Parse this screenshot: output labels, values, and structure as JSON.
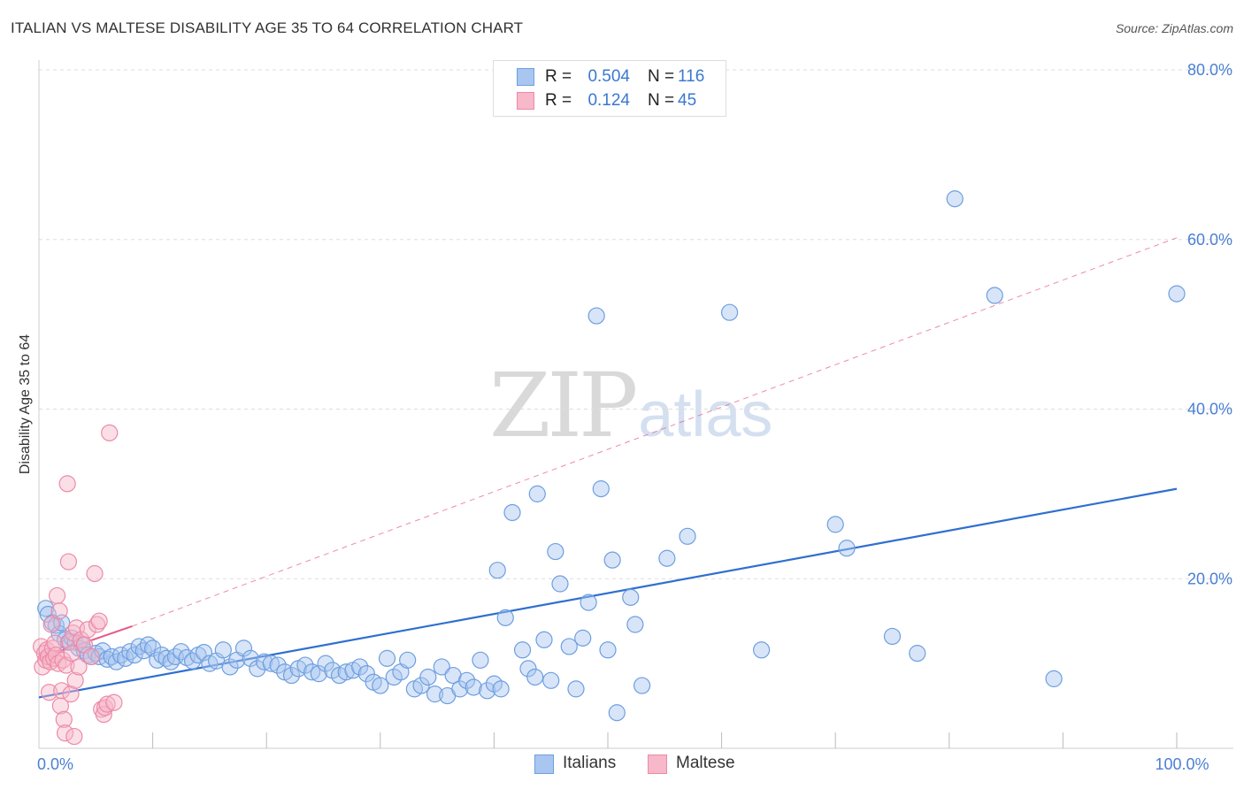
{
  "header": {
    "title": "ITALIAN VS MALTESE DISABILITY AGE 35 TO 64 CORRELATION CHART",
    "source": "Source: ZipAtlas.com"
  },
  "watermark": {
    "zip": "ZIP",
    "atlas": "atlas"
  },
  "legend": {
    "rows": [
      {
        "r_label": "R =",
        "r_value": "0.504",
        "n_label": "N =",
        "n_value": "116"
      },
      {
        "r_label": "R =",
        "r_value": "0.124",
        "n_label": "N =",
        "n_value": "45"
      }
    ]
  },
  "bottom_legend": {
    "italians": "Italians",
    "maltese": "Maltese"
  },
  "colors": {
    "italians_fill": "#a9c6f0",
    "italians_stroke": "#6d9fe0",
    "italians_line": "#2f6fcf",
    "maltese_fill": "#f7b8c9",
    "maltese_stroke": "#ec8aa7",
    "maltese_line": "#e6598a",
    "grid": "#dddddd",
    "tick_label": "#4a7fd4"
  },
  "chart_data": {
    "type": "scatter",
    "title": "ITALIAN VS MALTESE DISABILITY AGE 35 TO 64 CORRELATION CHART",
    "xlabel": "",
    "ylabel": "Disability Age 35 to 64",
    "xlim": [
      0,
      100
    ],
    "ylim": [
      0,
      80
    ],
    "x_tick_labels": [
      {
        "value": 0,
        "label": "0.0%"
      },
      {
        "value": 100,
        "label": "100.0%"
      }
    ],
    "y_tick_labels": [
      {
        "value": 20,
        "label": "20.0%"
      },
      {
        "value": 40,
        "label": "40.0%"
      },
      {
        "value": 60,
        "label": "60.0%"
      },
      {
        "value": 80,
        "label": "80.0%"
      }
    ],
    "grid": true,
    "legend_position": "top-center",
    "series": [
      {
        "name": "Italians",
        "r": 0.504,
        "n": 116,
        "trend": {
          "x": [
            0,
            100
          ],
          "y": [
            6.0,
            30.6
          ],
          "style": "solid"
        },
        "points": [
          [
            0.6,
            16.5
          ],
          [
            0.8,
            15.8
          ],
          [
            1.2,
            14.8
          ],
          [
            1.5,
            14.5
          ],
          [
            1.8,
            13.5
          ],
          [
            2.0,
            14.8
          ],
          [
            2.3,
            12.8
          ],
          [
            2.6,
            12.5
          ],
          [
            2.9,
            13.0
          ],
          [
            3.2,
            12.5
          ],
          [
            3.5,
            11.8
          ],
          [
            3.8,
            12.2
          ],
          [
            4.0,
            11.5
          ],
          [
            4.3,
            11.0
          ],
          [
            4.6,
            10.8
          ],
          [
            5.0,
            11.2
          ],
          [
            5.3,
            10.8
          ],
          [
            5.6,
            11.5
          ],
          [
            6.0,
            10.5
          ],
          [
            6.4,
            10.8
          ],
          [
            6.8,
            10.2
          ],
          [
            7.2,
            11.0
          ],
          [
            7.6,
            10.6
          ],
          [
            8.0,
            11.4
          ],
          [
            8.4,
            11.0
          ],
          [
            8.8,
            12.0
          ],
          [
            9.2,
            11.5
          ],
          [
            9.6,
            12.2
          ],
          [
            10.0,
            11.8
          ],
          [
            10.4,
            10.4
          ],
          [
            10.8,
            11.0
          ],
          [
            11.2,
            10.6
          ],
          [
            11.6,
            10.2
          ],
          [
            12.0,
            10.8
          ],
          [
            12.5,
            11.4
          ],
          [
            13.0,
            10.7
          ],
          [
            13.5,
            10.3
          ],
          [
            14.0,
            11.0
          ],
          [
            14.5,
            11.3
          ],
          [
            15.0,
            10.0
          ],
          [
            15.6,
            10.3
          ],
          [
            16.2,
            11.6
          ],
          [
            16.8,
            9.6
          ],
          [
            17.4,
            10.4
          ],
          [
            18.0,
            11.8
          ],
          [
            18.6,
            10.6
          ],
          [
            19.2,
            9.4
          ],
          [
            19.8,
            10.2
          ],
          [
            20.4,
            10.0
          ],
          [
            21.0,
            9.8
          ],
          [
            21.6,
            9.0
          ],
          [
            22.2,
            8.6
          ],
          [
            22.8,
            9.4
          ],
          [
            23.4,
            9.8
          ],
          [
            24.0,
            9.0
          ],
          [
            24.6,
            8.8
          ],
          [
            25.2,
            10.0
          ],
          [
            25.8,
            9.2
          ],
          [
            26.4,
            8.6
          ],
          [
            27.0,
            9.0
          ],
          [
            27.6,
            9.2
          ],
          [
            28.2,
            9.6
          ],
          [
            28.8,
            8.8
          ],
          [
            29.4,
            7.8
          ],
          [
            30.0,
            7.4
          ],
          [
            30.6,
            10.6
          ],
          [
            31.2,
            8.4
          ],
          [
            31.8,
            9.0
          ],
          [
            32.4,
            10.4
          ],
          [
            33.0,
            7.0
          ],
          [
            33.6,
            7.4
          ],
          [
            34.2,
            8.4
          ],
          [
            34.8,
            6.4
          ],
          [
            35.4,
            9.6
          ],
          [
            35.9,
            6.2
          ],
          [
            36.4,
            8.6
          ],
          [
            37.0,
            7.0
          ],
          [
            37.6,
            8.0
          ],
          [
            38.2,
            7.2
          ],
          [
            38.8,
            10.4
          ],
          [
            39.4,
            6.8
          ],
          [
            40.0,
            7.6
          ],
          [
            40.6,
            7.0
          ],
          [
            40.3,
            21.0
          ],
          [
            41.0,
            15.4
          ],
          [
            41.6,
            27.8
          ],
          [
            42.5,
            11.6
          ],
          [
            43.0,
            9.4
          ],
          [
            43.6,
            8.4
          ],
          [
            43.8,
            30.0
          ],
          [
            44.4,
            12.8
          ],
          [
            45.0,
            8.0
          ],
          [
            45.4,
            23.2
          ],
          [
            45.8,
            19.4
          ],
          [
            46.6,
            12.0
          ],
          [
            47.2,
            7.0
          ],
          [
            47.8,
            13.0
          ],
          [
            48.3,
            17.2
          ],
          [
            49.0,
            51.0
          ],
          [
            49.4,
            30.6
          ],
          [
            50.0,
            11.6
          ],
          [
            50.4,
            22.2
          ],
          [
            50.8,
            4.2
          ],
          [
            52.0,
            17.8
          ],
          [
            52.4,
            14.6
          ],
          [
            53.0,
            7.4
          ],
          [
            55.2,
            22.4
          ],
          [
            57.0,
            25.0
          ],
          [
            60.7,
            51.4
          ],
          [
            63.5,
            11.6
          ],
          [
            70.0,
            26.4
          ],
          [
            71.0,
            23.6
          ],
          [
            75.0,
            13.2
          ],
          [
            77.2,
            11.2
          ],
          [
            80.5,
            64.8
          ],
          [
            84.0,
            53.4
          ],
          [
            89.2,
            8.2
          ],
          [
            100.0,
            53.6
          ]
        ]
      },
      {
        "name": "Maltese",
        "r": 0.124,
        "n": 45,
        "trend": {
          "x": [
            0,
            8.2
          ],
          "y": [
            10.6,
            14.4
          ],
          "style": "solid"
        },
        "trend_extension": {
          "x": [
            8.2,
            100
          ],
          "y": [
            14.4,
            60.2
          ],
          "style": "dashed"
        },
        "points": [
          [
            0.2,
            12.0
          ],
          [
            0.3,
            9.6
          ],
          [
            0.5,
            11.2
          ],
          [
            0.6,
            10.4
          ],
          [
            0.7,
            11.6
          ],
          [
            0.8,
            10.8
          ],
          [
            0.9,
            6.6
          ],
          [
            1.0,
            10.2
          ],
          [
            1.1,
            14.6
          ],
          [
            1.2,
            11.8
          ],
          [
            1.3,
            10.6
          ],
          [
            1.4,
            12.4
          ],
          [
            1.5,
            11.0
          ],
          [
            1.6,
            18.0
          ],
          [
            1.7,
            10.0
          ],
          [
            1.8,
            16.2
          ],
          [
            1.9,
            5.0
          ],
          [
            2.0,
            6.8
          ],
          [
            2.1,
            10.4
          ],
          [
            2.2,
            3.4
          ],
          [
            2.3,
            1.8
          ],
          [
            2.4,
            9.8
          ],
          [
            2.5,
            31.2
          ],
          [
            2.6,
            22.0
          ],
          [
            2.7,
            12.6
          ],
          [
            2.8,
            6.4
          ],
          [
            2.9,
            11.2
          ],
          [
            3.0,
            13.6
          ],
          [
            3.1,
            1.4
          ],
          [
            3.2,
            8.0
          ],
          [
            3.3,
            14.2
          ],
          [
            3.5,
            9.6
          ],
          [
            3.7,
            12.8
          ],
          [
            4.0,
            12.2
          ],
          [
            4.3,
            14.0
          ],
          [
            4.6,
            10.8
          ],
          [
            4.9,
            20.6
          ],
          [
            5.1,
            14.6
          ],
          [
            5.3,
            15.0
          ],
          [
            5.5,
            4.6
          ],
          [
            5.7,
            4.0
          ],
          [
            5.8,
            4.8
          ],
          [
            6.0,
            5.2
          ],
          [
            6.2,
            37.2
          ],
          [
            6.6,
            5.4
          ]
        ]
      }
    ]
  }
}
